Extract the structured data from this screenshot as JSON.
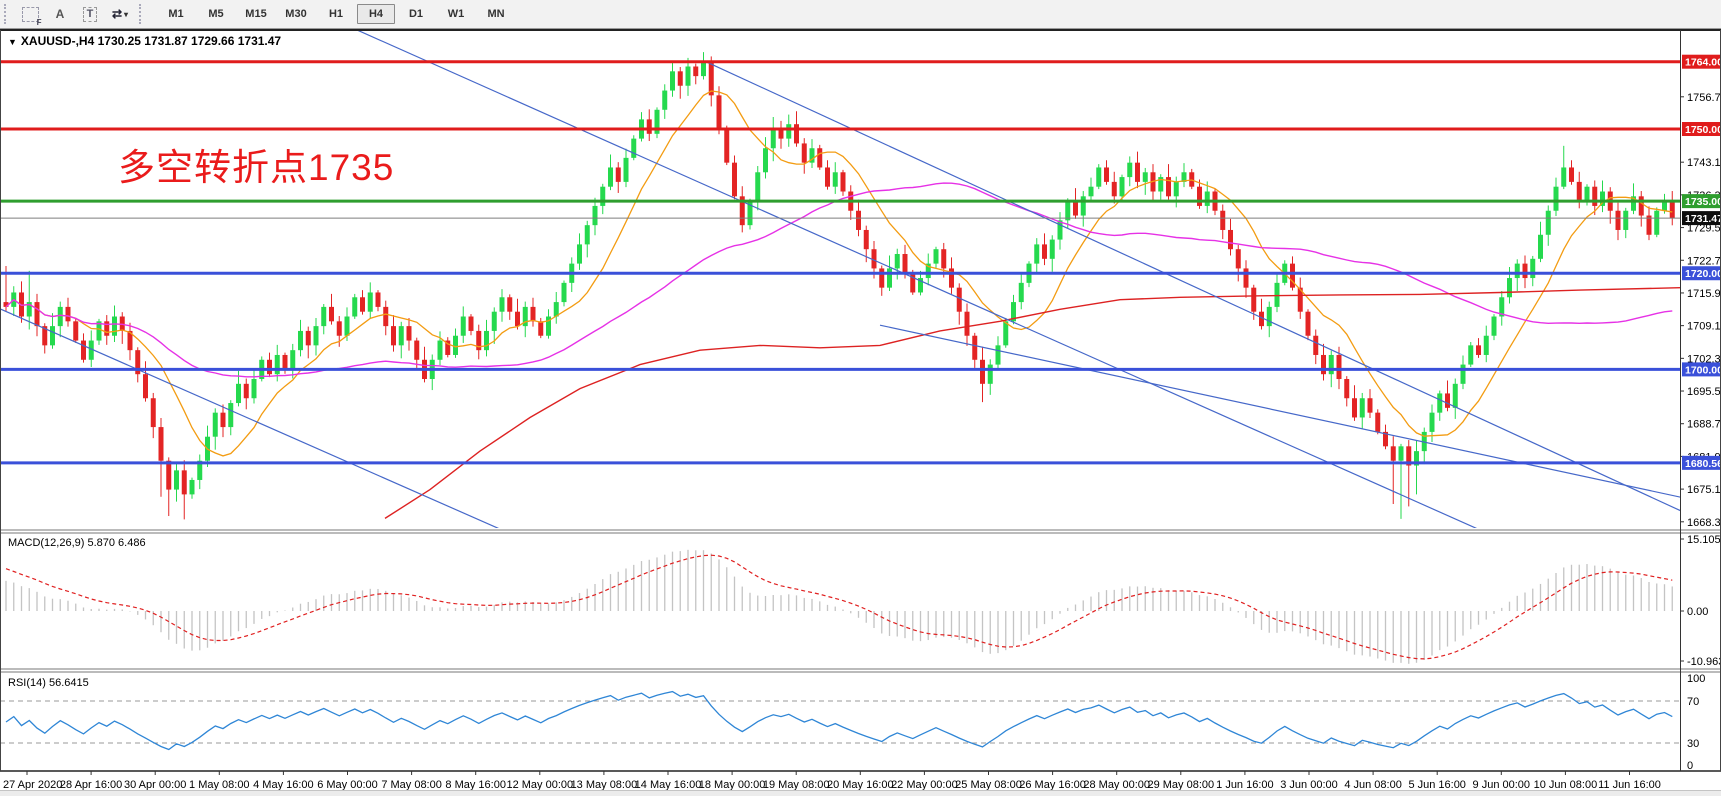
{
  "toolbar": {
    "tools": [
      {
        "id": "frame-select-tool",
        "glyph": "F"
      },
      {
        "id": "arrow-cursor-tool",
        "glyph": "A"
      },
      {
        "id": "text-label-tool",
        "glyph": "T"
      },
      {
        "id": "arrows-objects-tool",
        "glyph": "⇄",
        "caret": "▾"
      }
    ],
    "timeframes": [
      "M1",
      "M5",
      "M15",
      "M30",
      "H1",
      "H4",
      "D1",
      "W1",
      "MN"
    ],
    "active_timeframe": "H4"
  },
  "chart": {
    "symbol_dropdown": "▼",
    "symbol_ohlc": "XAUUSD-,H4  1730.25 1731.87 1729.66 1731.47",
    "annotation": {
      "text": "多空转折点1735",
      "color": "#ea1b1b"
    }
  },
  "labels": {
    "macd": "MACD(12,26,9) 5.870 6.486",
    "rsi": "RSI(14) 56.6415"
  },
  "price_axis": {
    "ticks": [
      "1756.70",
      "1743.10",
      "1736.30",
      "1729.50",
      "1722.70",
      "1715.90",
      "1709.10",
      "1702.30",
      "1695.50",
      "1688.70",
      "1681.90",
      "1675.10",
      "1668.30"
    ]
  },
  "time_axis": {
    "labels": [
      "27 Apr 2020",
      "28 Apr 16:00",
      "30 Apr 00:00",
      "1 May 08:00",
      "4 May 16:00",
      "6 May 00:00",
      "7 May 08:00",
      "8 May 16:00",
      "12 May 00:00",
      "13 May 08:00",
      "14 May 16:00",
      "18 May 00:00",
      "19 May 08:00",
      "20 May 16:00",
      "22 May 00:00",
      "25 May 08:00",
      "26 May 16:00",
      "28 May 00:00",
      "29 May 08:00",
      "1 Jun 16:00",
      "3 Jun 00:00",
      "4 Jun 08:00",
      "5 Jun 16:00",
      "9 Jun 00:00",
      "10 Jun 08:00",
      "11 Jun 16:00"
    ]
  },
  "chart_data": {
    "type": "candlestick",
    "symbol": "XAUUSD",
    "timeframe": "H4",
    "ohlc_current": {
      "open": 1730.25,
      "high": 1731.87,
      "low": 1729.66,
      "close": 1731.47
    },
    "price_axis_top": 1770.4,
    "price_axis_bottom": 1667.0,
    "closes": [
      1713,
      1716,
      1711,
      1714,
      1709,
      1705,
      1709,
      1713,
      1710,
      1706,
      1702,
      1706,
      1710,
      1707,
      1711,
      1708,
      1704,
      1699,
      1694,
      1688,
      1681,
      1675,
      1679,
      1674,
      1677,
      1681,
      1686,
      1691,
      1688,
      1693,
      1697,
      1694,
      1698,
      1702,
      1699,
      1703,
      1700,
      1704,
      1708,
      1705,
      1709,
      1713,
      1710,
      1707,
      1711,
      1715,
      1712,
      1716,
      1713,
      1709,
      1705,
      1709,
      1706,
      1702,
      1698,
      1702,
      1706,
      1703,
      1707,
      1711,
      1708,
      1704,
      1708,
      1712,
      1715,
      1712,
      1709,
      1713,
      1710,
      1707,
      1711,
      1714,
      1718,
      1722,
      1726,
      1730,
      1734,
      1738,
      1742,
      1739,
      1744,
      1748,
      1752,
      1749,
      1754,
      1758,
      1762,
      1759,
      1763,
      1761,
      1764,
      1757,
      1750,
      1743,
      1736,
      1730,
      1735,
      1741,
      1746,
      1750,
      1748,
      1751,
      1747,
      1743,
      1746,
      1742,
      1738,
      1741,
      1737,
      1733,
      1729,
      1725,
      1721,
      1717,
      1721,
      1724,
      1720,
      1716,
      1719,
      1722,
      1725,
      1721,
      1717,
      1712,
      1707,
      1702,
      1697,
      1701,
      1705,
      1710,
      1714,
      1718,
      1722,
      1726,
      1723,
      1727,
      1731,
      1735,
      1732,
      1736,
      1738,
      1742,
      1739,
      1736,
      1740,
      1743,
      1739,
      1741,
      1737,
      1740,
      1736,
      1739,
      1741,
      1738,
      1734,
      1737,
      1733,
      1729,
      1725,
      1721,
      1717,
      1712,
      1709,
      1713,
      1718,
      1722,
      1717,
      1712,
      1707,
      1703,
      1699,
      1703,
      1698,
      1694,
      1690,
      1694,
      1691,
      1687,
      1684,
      1681,
      1684,
      1680,
      1683,
      1687,
      1691,
      1695,
      1692,
      1697,
      1701,
      1705,
      1703,
      1707,
      1711,
      1715,
      1719,
      1722,
      1719,
      1723,
      1728,
      1733,
      1738,
      1742,
      1739,
      1735,
      1738,
      1734,
      1737,
      1733,
      1729,
      1733,
      1736,
      1732,
      1728,
      1733,
      1735,
      1731.47
    ],
    "high_overrides": {
      "0": 1721.5,
      "3": 1720.5,
      "86": 1764.2,
      "88": 1764.8,
      "90": 1766,
      "99": 1752.5,
      "101": 1753,
      "201": 1746.5
    },
    "low_overrides": {
      "20": 1673.5,
      "21": 1669.5,
      "22": 1672.5,
      "23": 1668.8,
      "126": 1693.2,
      "179": 1672,
      "180": 1668.9,
      "181": 1671.5,
      "182": 1674
    },
    "candle_up_color": "#25d94e",
    "candle_down_color": "#e32424",
    "moving_averages": {
      "fast_period": 10,
      "fast_color": "#f39c12",
      "mid_period": 50,
      "mid_color": "#e632e6",
      "slow_color": "#dd2222",
      "slow_points": [
        [
          385,
          1669
        ],
        [
          430,
          1675
        ],
        [
          480,
          1683
        ],
        [
          530,
          1690
        ],
        [
          580,
          1696
        ],
        [
          640,
          1701
        ],
        [
          700,
          1704
        ],
        [
          760,
          1705
        ],
        [
          820,
          1704.5
        ],
        [
          880,
          1705
        ],
        [
          940,
          1708
        ],
        [
          1000,
          1710
        ],
        [
          1060,
          1712.5
        ],
        [
          1120,
          1714.5
        ],
        [
          1180,
          1715
        ],
        [
          1260,
          1715.3
        ],
        [
          1340,
          1715.5
        ],
        [
          1420,
          1715.6
        ],
        [
          1500,
          1716
        ],
        [
          1580,
          1716.5
        ],
        [
          1680,
          1717
        ]
      ]
    },
    "hlines": [
      {
        "price": 1764.0,
        "color": "#e01c1c",
        "w": 3,
        "badge": "1764.00"
      },
      {
        "price": 1750.0,
        "color": "#e01c1c",
        "w": 3,
        "badge": "1750.00"
      },
      {
        "price": 1735.0,
        "color": "#2e9e2e",
        "w": 3,
        "badge": "1735.00"
      },
      {
        "price": 1720.0,
        "color": "#3a50d9",
        "w": 3,
        "badge": "1720.00"
      },
      {
        "price": 1700.0,
        "color": "#3a50d9",
        "w": 3,
        "badge": "1700.00"
      },
      {
        "price": 1680.56,
        "color": "#3a50d9",
        "w": 3,
        "badge": "1680.56"
      },
      {
        "price": 1731.47,
        "color": "#7d7d7d",
        "w": 1,
        "badge": "1731.47",
        "badge_color": "#0d0d0d"
      }
    ],
    "trendlines": [
      {
        "p1": [
          357,
          1770.6
        ],
        "p2": [
          1480,
          1666.6
        ],
        "color": "#4668c9"
      },
      {
        "p1": [
          707,
          1763.9
        ],
        "p2": [
          1690,
          1669.7
        ],
        "color": "#4668c9"
      },
      {
        "p1": [
          0,
          1712.6
        ],
        "p2": [
          502,
          1666.6
        ],
        "color": "#4668c9"
      },
      {
        "p1": [
          880,
          1709.2
        ],
        "p2": [
          1690,
          1673.0
        ],
        "color": "#4668c9"
      }
    ],
    "macd": {
      "params": "12,26,9",
      "value": 5.87,
      "signal_value": 6.486,
      "scale_ticks": [
        "15.105",
        "0.00",
        "-10.963"
      ],
      "histogram_color": "#c4c4c4",
      "signal_color": "#e02020"
    },
    "rsi": {
      "params": "14",
      "value": 56.6415,
      "levels": [
        70,
        30
      ],
      "scale_ticks": [
        "100",
        "70",
        "30",
        "0"
      ],
      "line_color": "#2f86d6"
    }
  }
}
